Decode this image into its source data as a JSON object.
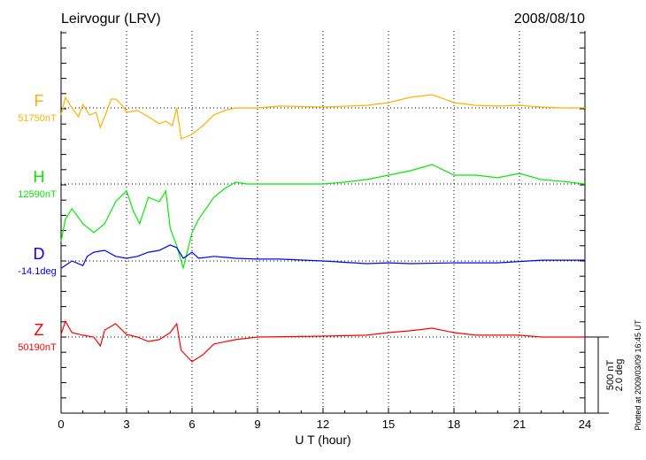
{
  "chart_data": {
    "type": "line",
    "title_left": "Leirvogur (LRV)",
    "title_right": "2008/08/10",
    "xlabel": "U T (hour)",
    "xlim": [
      0,
      24
    ],
    "xticks": [
      "0",
      "3",
      "6",
      "9",
      "12",
      "15",
      "18",
      "21",
      "24"
    ],
    "grid": true,
    "scale_label_nt": "500 nT",
    "scale_label_deg": "2.0 deg",
    "scale_nt": 500,
    "scale_deg": 2.0,
    "footer": "Plotted at 2009/03/09 16:45 UT",
    "series": [
      {
        "name": "F",
        "baseline_label": "51750nT",
        "color": "#ffb000",
        "unit": "nT",
        "x": [
          0,
          0.2,
          0.5,
          0.8,
          1.0,
          1.3,
          1.6,
          1.8,
          2.0,
          2.3,
          2.5,
          2.8,
          3.0,
          3.5,
          4.0,
          4.5,
          4.8,
          5.1,
          5.3,
          5.5,
          5.8,
          6.0,
          6.5,
          7,
          7.5,
          8,
          9,
          10,
          12,
          14,
          15,
          16,
          17,
          18,
          19,
          20,
          21,
          22,
          23,
          24
        ],
        "y": [
          -46,
          70,
          0,
          -58,
          23,
          -46,
          -29,
          -128,
          -58,
          58,
          58,
          17,
          -29,
          -17,
          -58,
          -104,
          -87,
          -116,
          0,
          -203,
          -186,
          -174,
          -116,
          -46,
          -17,
          0,
          0,
          12,
          6,
          17,
          35,
          70,
          87,
          35,
          17,
          12,
          17,
          6,
          0,
          0
        ]
      },
      {
        "name": "H",
        "baseline_label": "12590nT",
        "color": "#00ee00",
        "unit": "nT",
        "x": [
          0,
          0.2,
          0.5,
          1,
          1.5,
          2,
          2.5,
          3,
          3.3,
          3.6,
          4,
          4.5,
          4.8,
          5,
          5.3,
          5.6,
          6,
          6.3,
          7,
          7.5,
          8,
          8.5,
          9,
          10,
          12,
          13,
          14,
          15,
          16,
          17,
          18,
          19,
          20,
          21,
          22,
          23,
          24
        ],
        "y": [
          -377,
          -232,
          -162,
          -261,
          -319,
          -261,
          -116,
          -46,
          -174,
          -261,
          -87,
          -116,
          -46,
          -290,
          -406,
          -551,
          -319,
          -232,
          -87,
          -29,
          12,
          0,
          0,
          0,
          0,
          12,
          29,
          58,
          87,
          128,
          58,
          58,
          41,
          70,
          29,
          17,
          0
        ]
      },
      {
        "name": "D",
        "baseline_label": "-14.1deg",
        "color": "#0000ff",
        "unit": "deg",
        "x": [
          0,
          0.5,
          1,
          1.2,
          1.5,
          2,
          2.5,
          3,
          3.5,
          4,
          4.5,
          5,
          5.3,
          5.6,
          6,
          6.3,
          7,
          8,
          9,
          10,
          12,
          14,
          15,
          16,
          18,
          20,
          22,
          24
        ],
        "y": [
          -0.19,
          0,
          -0.12,
          0.12,
          0.23,
          0.28,
          0.12,
          0.07,
          0.12,
          0.23,
          0.28,
          0.42,
          0.35,
          0.07,
          0.23,
          0.07,
          0.12,
          0.07,
          0.05,
          0.05,
          0,
          -0.07,
          -0.05,
          -0.07,
          -0.05,
          -0.05,
          0.02,
          0.02
        ]
      },
      {
        "name": "Z",
        "baseline_label": "50190nT",
        "color": "#ff0000",
        "unit": "nT",
        "x": [
          0,
          0.2,
          0.5,
          1,
          1.5,
          1.8,
          2,
          2.5,
          3,
          3.5,
          4,
          4.5,
          5,
          5.3,
          5.5,
          6,
          6.5,
          7,
          8,
          9,
          12,
          14,
          15,
          16,
          17,
          18,
          19,
          20,
          21,
          22,
          23,
          24
        ],
        "y": [
          17,
          104,
          29,
          12,
          0,
          -58,
          46,
          87,
          17,
          0,
          -29,
          -17,
          29,
          87,
          -87,
          -162,
          -116,
          -46,
          -17,
          0,
          6,
          12,
          29,
          41,
          58,
          29,
          12,
          12,
          12,
          0,
          0,
          0
        ]
      }
    ]
  }
}
